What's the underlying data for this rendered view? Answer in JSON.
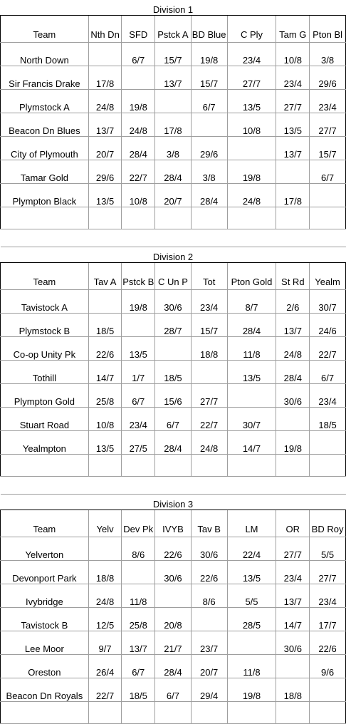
{
  "divisions": [
    {
      "title": "Division 1",
      "headers": [
        "Team",
        "Nth Dn",
        "SFD",
        "Pstck A",
        "BD Blue",
        "C Ply",
        "Tam G",
        "Pton Bl"
      ],
      "rows": [
        [
          "North Down",
          "",
          "6/7",
          "15/7",
          "19/8",
          "23/4",
          "10/8",
          "3/8"
        ],
        [
          "Sir Francis Drake",
          "17/8",
          "",
          "13/7",
          "15/7",
          "27/7",
          "23/4",
          "29/6"
        ],
        [
          "Plymstock A",
          "24/8",
          "19/8",
          "",
          "6/7",
          "13/5",
          "27/7",
          "23/4"
        ],
        [
          "Beacon Dn Blues",
          "13/7",
          "24/8",
          "17/8",
          "",
          "10/8",
          "13/5",
          "27/7"
        ],
        [
          "City of Plymouth",
          "20/7",
          "28/4",
          "3/8",
          "29/6",
          "",
          "13/7",
          "15/7"
        ],
        [
          "Tamar Gold",
          "29/6",
          "22/7",
          "28/4",
          "3/8",
          "19/8",
          "",
          "6/7"
        ],
        [
          "Plympton Black",
          "13/5",
          "10/8",
          "20/7",
          "28/4",
          "24/8",
          "17/8",
          ""
        ]
      ]
    },
    {
      "title": "Division 2",
      "headers": [
        "Team",
        "Tav A",
        "Pstck B",
        "C Un P",
        "Tot",
        "Pton Gold",
        "St Rd",
        "Yealm"
      ],
      "rows": [
        [
          "Tavistock A",
          "",
          "19/8",
          "30/6",
          "23/4",
          "8/7",
          "2/6",
          "30/7"
        ],
        [
          "Plymstock B",
          "18/5",
          "",
          "28/7",
          "15/7",
          "28/4",
          "13/7",
          "24/6"
        ],
        [
          "Co-op Unity Pk",
          "22/6",
          "13/5",
          "",
          "18/8",
          "11/8",
          "24/8",
          "22/7"
        ],
        [
          "Tothill",
          "14/7",
          "1/7",
          "18/5",
          "",
          "13/5",
          "28/4",
          "6/7"
        ],
        [
          "Plympton Gold",
          "25/8",
          "6/7",
          "15/6",
          "27/7",
          "",
          "30/6",
          "23/4"
        ],
        [
          "Stuart Road",
          "10/8",
          "23/4",
          "6/7",
          "22/7",
          "30/7",
          "",
          "18/5"
        ],
        [
          "Yealmpton",
          "13/5",
          "27/5",
          "28/4",
          "24/8",
          "14/7",
          "19/8",
          ""
        ]
      ]
    },
    {
      "title": "Division 3",
      "headers": [
        "Team",
        "Yelv",
        "Dev Pk",
        "IVYB",
        "Tav B",
        "LM",
        "OR",
        "BD Roy"
      ],
      "rows": [
        [
          "Yelverton",
          "",
          "8/6",
          "22/6",
          "30/6",
          "22/4",
          "27/7",
          "5/5"
        ],
        [
          "Devonport Park",
          "18/8",
          "",
          "30/6",
          "22/6",
          "13/5",
          "23/4",
          "27/7"
        ],
        [
          "Ivybridge",
          "24/8",
          "11/8",
          "",
          "8/6",
          "5/5",
          "13/7",
          "23/4"
        ],
        [
          "Tavistock B",
          "12/5",
          "25/8",
          "20/8",
          "",
          "28/5",
          "14/7",
          "17/7"
        ],
        [
          "Lee Moor",
          "9/7",
          "13/7",
          "21/7",
          "23/7",
          "",
          "30/6",
          "22/6"
        ],
        [
          "Oreston",
          "26/4",
          "6/7",
          "28/4",
          "20/7",
          "11/8",
          "",
          "9/6"
        ],
        [
          "Beacon Dn Royals",
          "22/7",
          "18/5",
          "6/7",
          "29/4",
          "19/8",
          "18/8",
          ""
        ]
      ]
    }
  ]
}
